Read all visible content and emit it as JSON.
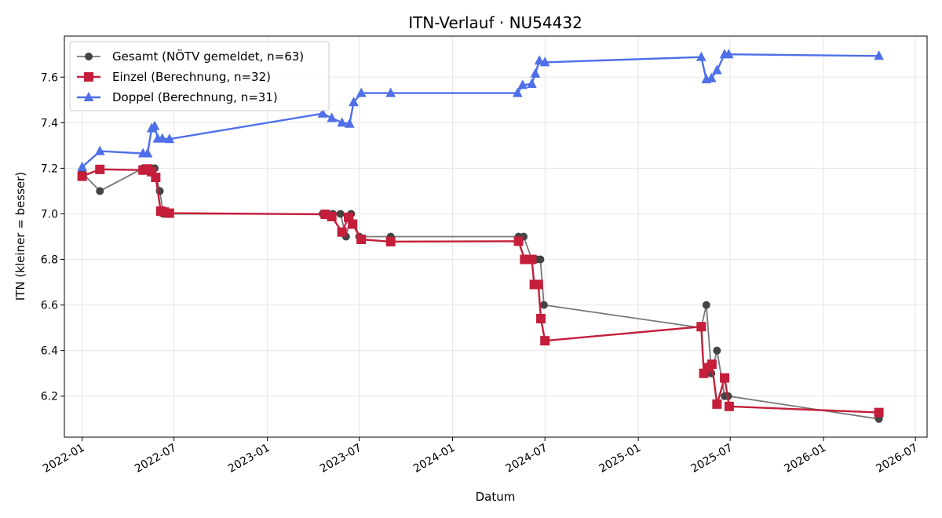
{
  "chart_data": {
    "type": "line",
    "title": "ITN-Verlauf · NU54432",
    "xlabel": "Datum",
    "ylabel": "ITN  (kleiner = besser)",
    "x_type": "date",
    "xlim": [
      "2021-11-27",
      "2026-07-24"
    ],
    "ylim": [
      6.02,
      7.78
    ],
    "x_ticks": [
      "2022-01",
      "2022-07",
      "2023-01",
      "2023-07",
      "2024-01",
      "2024-07",
      "2025-01",
      "2025-07",
      "2026-01",
      "2026-07"
    ],
    "y_ticks": [
      6.2,
      6.4,
      6.6,
      6.8,
      7.0,
      7.2,
      7.4,
      7.6
    ],
    "grid": true,
    "legend_position": "top-left",
    "series": [
      {
        "name": "Gesamt (NÖTV gemeldet, n=63)",
        "color": "#777777",
        "marker": "circle",
        "marker_color": "#444444",
        "points": [
          [
            "2022-01-01",
            7.18
          ],
          [
            "2022-02-05",
            7.1
          ],
          [
            "2022-05-01",
            7.2
          ],
          [
            "2022-05-10",
            7.2
          ],
          [
            "2022-05-17",
            7.2
          ],
          [
            "2022-05-24",
            7.2
          ],
          [
            "2022-06-03",
            7.1
          ],
          [
            "2022-06-10",
            7.0
          ],
          [
            "2022-06-18",
            7.0
          ],
          [
            "2023-04-20",
            7.0
          ],
          [
            "2023-05-10",
            7.0
          ],
          [
            "2023-05-25",
            7.0
          ],
          [
            "2023-06-05",
            6.9
          ],
          [
            "2023-06-15",
            7.0
          ],
          [
            "2023-07-01",
            6.9
          ],
          [
            "2023-09-01",
            6.9
          ],
          [
            "2024-05-10",
            6.9
          ],
          [
            "2024-05-20",
            6.9
          ],
          [
            "2024-06-05",
            6.8
          ],
          [
            "2024-06-15",
            6.8
          ],
          [
            "2024-06-22",
            6.8
          ],
          [
            "2024-06-29",
            6.6
          ],
          [
            "2025-05-05",
            6.5
          ],
          [
            "2025-05-15",
            6.6
          ],
          [
            "2025-05-25",
            6.3
          ],
          [
            "2025-06-05",
            6.4
          ],
          [
            "2025-06-20",
            6.2
          ],
          [
            "2025-06-27",
            6.2
          ],
          [
            "2026-04-20",
            6.1
          ]
        ]
      },
      {
        "name": "Einzel (Berechnung, n=32)",
        "color": "#c41e3a",
        "marker": "square",
        "marker_color": "#c41e3a",
        "points": [
          [
            "2022-01-01",
            7.165
          ],
          [
            "2022-02-05",
            7.195
          ],
          [
            "2022-05-01",
            7.192
          ],
          [
            "2022-05-10",
            7.197
          ],
          [
            "2022-05-18",
            7.185
          ],
          [
            "2022-05-26",
            7.16
          ],
          [
            "2022-06-05",
            7.012
          ],
          [
            "2022-06-12",
            7.008
          ],
          [
            "2022-06-22",
            7.003
          ],
          [
            "2023-04-25",
            6.998
          ],
          [
            "2023-05-08",
            6.988
          ],
          [
            "2023-05-28",
            6.92
          ],
          [
            "2023-06-10",
            6.985
          ],
          [
            "2023-06-18",
            6.955
          ],
          [
            "2023-07-05",
            6.888
          ],
          [
            "2023-09-01",
            6.878
          ],
          [
            "2024-05-10",
            6.88
          ],
          [
            "2024-05-22",
            6.8
          ],
          [
            "2024-06-05",
            6.8
          ],
          [
            "2024-06-10",
            6.69
          ],
          [
            "2024-06-18",
            6.69
          ],
          [
            "2024-06-23",
            6.54
          ],
          [
            "2024-07-01",
            6.443
          ],
          [
            "2025-05-05",
            6.505
          ],
          [
            "2025-05-10",
            6.3
          ],
          [
            "2025-05-18",
            6.325
          ],
          [
            "2025-05-26",
            6.34
          ],
          [
            "2025-06-05",
            6.165
          ],
          [
            "2025-06-20",
            6.28
          ],
          [
            "2025-06-29",
            6.155
          ],
          [
            "2026-04-20",
            6.128
          ]
        ]
      },
      {
        "name": "Doppel (Berechnung, n=31)",
        "color": "#4f6fe8",
        "marker": "triangle",
        "marker_color": "#4f6fe8",
        "points": [
          [
            "2022-01-01",
            7.205
          ],
          [
            "2022-02-05",
            7.275
          ],
          [
            "2022-05-01",
            7.265
          ],
          [
            "2022-05-10",
            7.265
          ],
          [
            "2022-05-18",
            7.375
          ],
          [
            "2022-05-24",
            7.385
          ],
          [
            "2022-05-30",
            7.33
          ],
          [
            "2022-06-08",
            7.33
          ],
          [
            "2022-06-22",
            7.328
          ],
          [
            "2023-04-20",
            7.44
          ],
          [
            "2023-05-08",
            7.42
          ],
          [
            "2023-05-28",
            7.4
          ],
          [
            "2023-06-12",
            7.395
          ],
          [
            "2023-06-20",
            7.49
          ],
          [
            "2023-07-05",
            7.53
          ],
          [
            "2023-09-01",
            7.53
          ],
          [
            "2024-05-08",
            7.53
          ],
          [
            "2024-05-18",
            7.565
          ],
          [
            "2024-06-05",
            7.57
          ],
          [
            "2024-06-12",
            7.615
          ],
          [
            "2024-06-20",
            7.672
          ],
          [
            "2024-07-01",
            7.665
          ],
          [
            "2025-05-05",
            7.688
          ],
          [
            "2025-05-15",
            7.59
          ],
          [
            "2025-05-25",
            7.595
          ],
          [
            "2025-06-05",
            7.63
          ],
          [
            "2025-06-20",
            7.7
          ],
          [
            "2025-06-28",
            7.7
          ],
          [
            "2026-04-20",
            7.693
          ]
        ]
      }
    ]
  }
}
